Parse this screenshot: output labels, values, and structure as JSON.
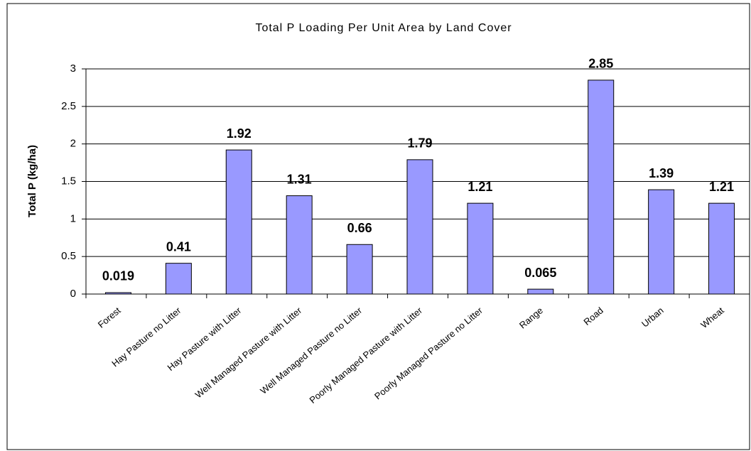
{
  "chart_data": {
    "type": "bar",
    "title": "Total P Loading Per Unit Area by Land Cover",
    "y_label": "Total P (kg/ha)",
    "categories": [
      "Forest",
      "Hay Pasture no Litter",
      "Hay Pasture with Litter",
      "Well Managed Pasture with Litter",
      "Well Managed Pasture no Litter",
      "Poorly Managed Pasture with Litter",
      "Poorly Managed Pasture no Litter",
      "Range",
      "Road",
      "Urban",
      "Wheat"
    ],
    "values": [
      0.019,
      0.41,
      1.92,
      1.31,
      0.66,
      1.79,
      1.21,
      0.065,
      2.85,
      1.39,
      1.21
    ],
    "color": "#9999ff",
    "ylim": [
      0,
      3
    ],
    "yticks": [
      0,
      0.5,
      1,
      1.5,
      2,
      2.5,
      3
    ],
    "grid": true
  }
}
